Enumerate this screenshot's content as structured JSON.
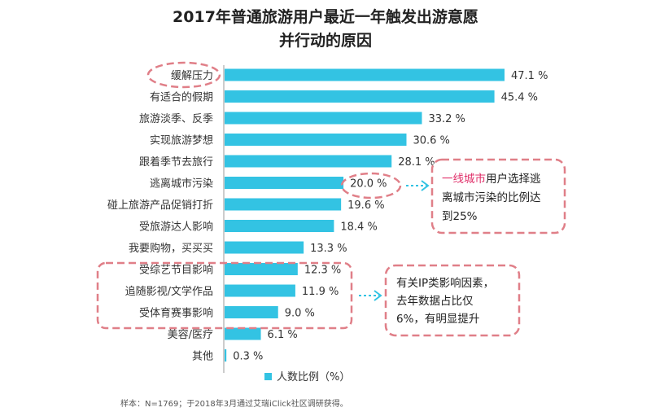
{
  "chart_data": {
    "type": "bar",
    "orientation": "horizontal",
    "title_line1": "2017年普通旅游用户最近一年触发出游意愿",
    "title_line2": "并行动的原因",
    "categories": [
      "缓解压力",
      "有适合的假期",
      "旅游淡季、反季",
      "实现旅游梦想",
      "跟着季节去旅行",
      "逃离城市污染",
      "碰上旅游产品促销打折",
      "受旅游达人影响",
      "我要购物，买买买",
      "受综艺节目影响",
      "追随影视/文学作品",
      "受体育赛事影响",
      "美容/医疗",
      "其他"
    ],
    "values": [
      47.1,
      45.4,
      33.2,
      30.6,
      28.1,
      20.0,
      19.6,
      18.4,
      13.3,
      12.3,
      11.9,
      9.0,
      6.1,
      0.3
    ],
    "value_labels": [
      "47.1 %",
      "45.4 %",
      "33.2 %",
      "30.6 %",
      "28.1 %",
      "20.0 %",
      "19.6 %",
      "18.4 %",
      "13.3 %",
      "12.3 %",
      "11.9 %",
      "9.0 %",
      "6.1 %",
      "0.3 %"
    ],
    "series": [
      {
        "name": "人数比例（%）",
        "values": [
          47.1,
          45.4,
          33.2,
          30.6,
          28.1,
          20.0,
          19.6,
          18.4,
          13.3,
          12.3,
          11.9,
          9.0,
          6.1,
          0.3
        ]
      }
    ],
    "xlim": [
      0,
      50
    ],
    "bar_color": "#33c3e3",
    "legend": {
      "label": "人数比例（%）",
      "placement": "bottom"
    },
    "annotations": {
      "note1": {
        "highlight": "一线城市",
        "line1_rest": "用户选择逃",
        "line2": "离城市污染的比例达",
        "line3": "到25%"
      },
      "note2": {
        "line1": "有关IP类影响因素，",
        "line2": "去年数据占比仅",
        "line3": "6%，有明显提升"
      }
    },
    "accent_color": "#e07f88",
    "source": "样本：N=1769；于2018年3月通过艾瑞iClick社区调研获得。"
  }
}
